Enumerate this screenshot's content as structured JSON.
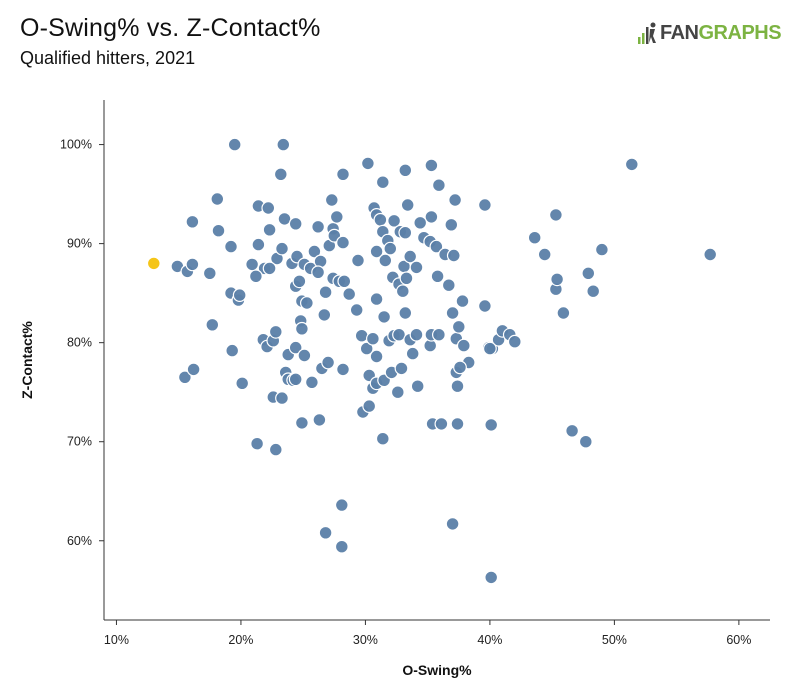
{
  "header": {
    "title": "O-Swing% vs. Z-Contact%",
    "subtitle": "Qualified hitters, 2021"
  },
  "logo": {
    "text_fan": "FAN",
    "text_graphs": "GRAPHS",
    "icon": "fangraphs-logo-icon"
  },
  "colors": {
    "point": "#5b7fa8",
    "point_stroke": "#ffffff",
    "highlight": "#f5c518",
    "axis": "#333333"
  },
  "chart_data": {
    "type": "scatter",
    "title": "O-Swing% vs. Z-Contact%",
    "subtitle": "Qualified hitters, 2021",
    "xlabel": "O-Swing%",
    "ylabel": "Z-Contact%",
    "xlim": [
      0.09,
      0.625
    ],
    "ylim": [
      0.52,
      1.045
    ],
    "x_ticks": [
      0.1,
      0.2,
      0.3,
      0.4,
      0.5,
      0.6
    ],
    "x_tick_labels": [
      "10%",
      "20%",
      "30%",
      "40%",
      "50%",
      "60%"
    ],
    "y_ticks": [
      0.6,
      0.7,
      0.8,
      0.9,
      1.0
    ],
    "y_tick_labels": [
      "60%",
      "70%",
      "80%",
      "90%",
      "100%"
    ],
    "grid": false,
    "highlight": {
      "x": 0.13,
      "y": 0.88
    },
    "points": [
      [
        0.195,
        1.0
      ],
      [
        0.234,
        1.0
      ],
      [
        0.232,
        0.97
      ],
      [
        0.282,
        0.97
      ],
      [
        0.302,
        0.981
      ],
      [
        0.332,
        0.974
      ],
      [
        0.353,
        0.979
      ],
      [
        0.514,
        0.98
      ],
      [
        0.181,
        0.945
      ],
      [
        0.214,
        0.938
      ],
      [
        0.222,
        0.936
      ],
      [
        0.273,
        0.944
      ],
      [
        0.314,
        0.962
      ],
      [
        0.359,
        0.959
      ],
      [
        0.372,
        0.944
      ],
      [
        0.396,
        0.939
      ],
      [
        0.161,
        0.922
      ],
      [
        0.182,
        0.913
      ],
      [
        0.235,
        0.925
      ],
      [
        0.244,
        0.92
      ],
      [
        0.262,
        0.917
      ],
      [
        0.274,
        0.915
      ],
      [
        0.277,
        0.927
      ],
      [
        0.307,
        0.936
      ],
      [
        0.309,
        0.929
      ],
      [
        0.312,
        0.924
      ],
      [
        0.323,
        0.923
      ],
      [
        0.328,
        0.912
      ],
      [
        0.332,
        0.911
      ],
      [
        0.334,
        0.939
      ],
      [
        0.353,
        0.927
      ],
      [
        0.344,
        0.921
      ],
      [
        0.369,
        0.919
      ],
      [
        0.453,
        0.929
      ],
      [
        0.192,
        0.897
      ],
      [
        0.209,
        0.879
      ],
      [
        0.214,
        0.899
      ],
      [
        0.219,
        0.875
      ],
      [
        0.223,
        0.914
      ],
      [
        0.229,
        0.885
      ],
      [
        0.233,
        0.895
      ],
      [
        0.241,
        0.88
      ],
      [
        0.245,
        0.887
      ],
      [
        0.251,
        0.879
      ],
      [
        0.256,
        0.875
      ],
      [
        0.259,
        0.892
      ],
      [
        0.264,
        0.882
      ],
      [
        0.271,
        0.898
      ],
      [
        0.275,
        0.908
      ],
      [
        0.282,
        0.901
      ],
      [
        0.294,
        0.883
      ],
      [
        0.309,
        0.892
      ],
      [
        0.314,
        0.912
      ],
      [
        0.318,
        0.903
      ],
      [
        0.32,
        0.895
      ],
      [
        0.331,
        0.877
      ],
      [
        0.336,
        0.887
      ],
      [
        0.341,
        0.876
      ],
      [
        0.347,
        0.906
      ],
      [
        0.352,
        0.902
      ],
      [
        0.357,
        0.897
      ],
      [
        0.364,
        0.889
      ],
      [
        0.371,
        0.888
      ],
      [
        0.436,
        0.906
      ],
      [
        0.444,
        0.889
      ],
      [
        0.49,
        0.894
      ],
      [
        0.577,
        0.889
      ],
      [
        0.149,
        0.877
      ],
      [
        0.157,
        0.872
      ],
      [
        0.161,
        0.879
      ],
      [
        0.175,
        0.87
      ],
      [
        0.192,
        0.85
      ],
      [
        0.198,
        0.843
      ],
      [
        0.199,
        0.848
      ],
      [
        0.212,
        0.867
      ],
      [
        0.223,
        0.875
      ],
      [
        0.244,
        0.857
      ],
      [
        0.247,
        0.862
      ],
      [
        0.249,
        0.842
      ],
      [
        0.253,
        0.84
      ],
      [
        0.262,
        0.871
      ],
      [
        0.268,
        0.851
      ],
      [
        0.274,
        0.865
      ],
      [
        0.279,
        0.862
      ],
      [
        0.283,
        0.862
      ],
      [
        0.287,
        0.849
      ],
      [
        0.309,
        0.844
      ],
      [
        0.316,
        0.883
      ],
      [
        0.322,
        0.866
      ],
      [
        0.327,
        0.859
      ],
      [
        0.33,
        0.852
      ],
      [
        0.333,
        0.865
      ],
      [
        0.358,
        0.867
      ],
      [
        0.367,
        0.858
      ],
      [
        0.378,
        0.842
      ],
      [
        0.396,
        0.837
      ],
      [
        0.453,
        0.854
      ],
      [
        0.454,
        0.864
      ],
      [
        0.479,
        0.87
      ],
      [
        0.483,
        0.852
      ],
      [
        0.177,
        0.818
      ],
      [
        0.193,
        0.792
      ],
      [
        0.218,
        0.803
      ],
      [
        0.221,
        0.796
      ],
      [
        0.226,
        0.802
      ],
      [
        0.228,
        0.811
      ],
      [
        0.238,
        0.788
      ],
      [
        0.244,
        0.795
      ],
      [
        0.248,
        0.822
      ],
      [
        0.249,
        0.814
      ],
      [
        0.251,
        0.787
      ],
      [
        0.267,
        0.828
      ],
      [
        0.293,
        0.833
      ],
      [
        0.297,
        0.807
      ],
      [
        0.301,
        0.794
      ],
      [
        0.306,
        0.804
      ],
      [
        0.309,
        0.786
      ],
      [
        0.315,
        0.826
      ],
      [
        0.319,
        0.802
      ],
      [
        0.323,
        0.807
      ],
      [
        0.327,
        0.808
      ],
      [
        0.332,
        0.83
      ],
      [
        0.336,
        0.803
      ],
      [
        0.338,
        0.789
      ],
      [
        0.341,
        0.808
      ],
      [
        0.352,
        0.797
      ],
      [
        0.353,
        0.808
      ],
      [
        0.359,
        0.808
      ],
      [
        0.37,
        0.83
      ],
      [
        0.373,
        0.804
      ],
      [
        0.375,
        0.816
      ],
      [
        0.379,
        0.797
      ],
      [
        0.383,
        0.78
      ],
      [
        0.399,
        0.795
      ],
      [
        0.402,
        0.794
      ],
      [
        0.407,
        0.803
      ],
      [
        0.41,
        0.812
      ],
      [
        0.416,
        0.808
      ],
      [
        0.42,
        0.801
      ],
      [
        0.459,
        0.83
      ],
      [
        0.155,
        0.765
      ],
      [
        0.162,
        0.773
      ],
      [
        0.201,
        0.759
      ],
      [
        0.236,
        0.77
      ],
      [
        0.238,
        0.763
      ],
      [
        0.242,
        0.762
      ],
      [
        0.244,
        0.763
      ],
      [
        0.257,
        0.76
      ],
      [
        0.265,
        0.774
      ],
      [
        0.27,
        0.78
      ],
      [
        0.282,
        0.773
      ],
      [
        0.303,
        0.767
      ],
      [
        0.306,
        0.754
      ],
      [
        0.309,
        0.759
      ],
      [
        0.315,
        0.762
      ],
      [
        0.321,
        0.77
      ],
      [
        0.326,
        0.75
      ],
      [
        0.329,
        0.774
      ],
      [
        0.342,
        0.756
      ],
      [
        0.373,
        0.77
      ],
      [
        0.374,
        0.756
      ],
      [
        0.376,
        0.775
      ],
      [
        0.4,
        0.794
      ],
      [
        0.226,
        0.745
      ],
      [
        0.233,
        0.744
      ],
      [
        0.249,
        0.719
      ],
      [
        0.263,
        0.722
      ],
      [
        0.298,
        0.73
      ],
      [
        0.303,
        0.736
      ],
      [
        0.213,
        0.698
      ],
      [
        0.228,
        0.692
      ],
      [
        0.314,
        0.703
      ],
      [
        0.354,
        0.718
      ],
      [
        0.361,
        0.718
      ],
      [
        0.374,
        0.718
      ],
      [
        0.401,
        0.717
      ],
      [
        0.466,
        0.711
      ],
      [
        0.477,
        0.7
      ],
      [
        0.268,
        0.608
      ],
      [
        0.281,
        0.636
      ],
      [
        0.281,
        0.594
      ],
      [
        0.37,
        0.617
      ],
      [
        0.401,
        0.563
      ]
    ]
  }
}
